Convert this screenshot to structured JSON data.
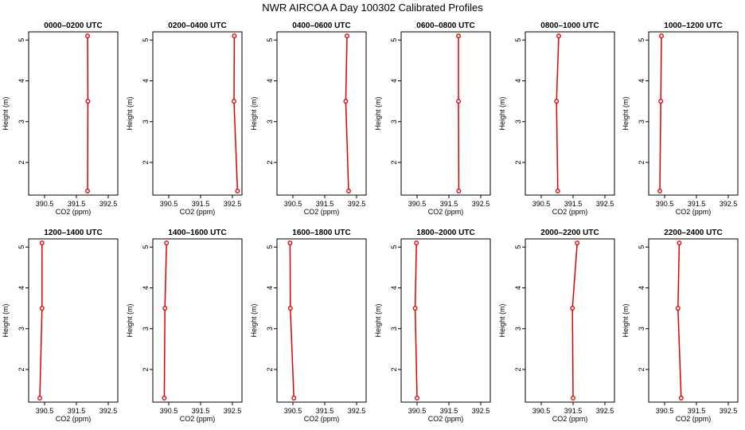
{
  "title": "NWR AIRCOA A  Day 100302  Calibrated Profiles",
  "colors": {
    "series": "#dd0000",
    "axis": "#000000"
  },
  "chart_data": [
    {
      "type": "line",
      "title": "0000–0200 UTC",
      "xlabel": "CO2 (ppm)",
      "ylabel": "Height (m)",
      "xlim": [
        390.0,
        392.8
      ],
      "ylim": [
        1.2,
        5.2
      ],
      "xticks": [
        "390.5",
        "391.5",
        "392.5"
      ],
      "yticks": [
        "2",
        "3",
        "4",
        "5"
      ],
      "grid": false,
      "x": [
        391.85,
        391.86,
        391.85
      ],
      "y": [
        5.1,
        3.5,
        1.3
      ]
    },
    {
      "type": "line",
      "title": "0200–0400 UTC",
      "xlabel": "CO2 (ppm)",
      "ylabel": "Height (m)",
      "xlim": [
        390.0,
        392.8
      ],
      "ylim": [
        1.2,
        5.2
      ],
      "xticks": [
        "390.5",
        "391.5",
        "392.5"
      ],
      "yticks": [
        "2",
        "3",
        "4",
        "5"
      ],
      "grid": false,
      "x": [
        392.56,
        392.55,
        392.66
      ],
      "y": [
        5.1,
        3.5,
        1.3
      ]
    },
    {
      "type": "line",
      "title": "0400–0600 UTC",
      "xlabel": "CO2 (ppm)",
      "ylabel": "Height (m)",
      "xlim": [
        390.0,
        392.8
      ],
      "ylim": [
        1.2,
        5.2
      ],
      "xticks": [
        "390.5",
        "391.5",
        "392.5"
      ],
      "yticks": [
        "2",
        "3",
        "4",
        "5"
      ],
      "grid": false,
      "x": [
        392.2,
        392.16,
        392.25
      ],
      "y": [
        5.1,
        3.5,
        1.3
      ]
    },
    {
      "type": "line",
      "title": "0600–0800 UTC",
      "xlabel": "CO2 (ppm)",
      "ylabel": "Height (m)",
      "xlim": [
        390.0,
        392.8
      ],
      "ylim": [
        1.2,
        5.2
      ],
      "xticks": [
        "390.5",
        "391.5",
        "392.5"
      ],
      "yticks": [
        "2",
        "3",
        "4",
        "5"
      ],
      "grid": false,
      "x": [
        391.8,
        391.8,
        391.81
      ],
      "y": [
        5.1,
        3.5,
        1.3
      ]
    },
    {
      "type": "line",
      "title": "0800–1000 UTC",
      "xlabel": "CO2 (ppm)",
      "ylabel": "Height (m)",
      "xlim": [
        390.0,
        392.8
      ],
      "ylim": [
        1.2,
        5.2
      ],
      "xticks": [
        "390.5",
        "391.5",
        "392.5"
      ],
      "yticks": [
        "2",
        "3",
        "4",
        "5"
      ],
      "grid": false,
      "x": [
        391.05,
        390.98,
        391.02
      ],
      "y": [
        5.1,
        3.5,
        1.3
      ]
    },
    {
      "type": "line",
      "title": "1000–1200 UTC",
      "xlabel": "CO2 (ppm)",
      "ylabel": "Height (m)",
      "xlim": [
        390.0,
        392.8
      ],
      "ylim": [
        1.2,
        5.2
      ],
      "xticks": [
        "390.5",
        "391.5",
        "392.5"
      ],
      "yticks": [
        "2",
        "3",
        "4",
        "5"
      ],
      "grid": false,
      "x": [
        390.4,
        390.38,
        390.35
      ],
      "y": [
        5.1,
        3.5,
        1.3
      ]
    },
    {
      "type": "line",
      "title": "1200–1400 UTC",
      "xlabel": "CO2 (ppm)",
      "ylabel": "Height (m)",
      "xlim": [
        390.0,
        392.8
      ],
      "ylim": [
        1.2,
        5.2
      ],
      "xticks": [
        "390.5",
        "391.5",
        "392.5"
      ],
      "yticks": [
        "2",
        "3",
        "4",
        "5"
      ],
      "grid": false,
      "x": [
        390.42,
        390.42,
        390.35
      ],
      "y": [
        5.1,
        3.5,
        1.3
      ]
    },
    {
      "type": "line",
      "title": "1400–1600 UTC",
      "xlabel": "CO2 (ppm)",
      "ylabel": "Height (m)",
      "xlim": [
        390.0,
        392.8
      ],
      "ylim": [
        1.2,
        5.2
      ],
      "xticks": [
        "390.5",
        "391.5",
        "392.5"
      ],
      "yticks": [
        "2",
        "3",
        "4",
        "5"
      ],
      "grid": false,
      "x": [
        390.43,
        390.38,
        390.36
      ],
      "y": [
        5.1,
        3.5,
        1.3
      ]
    },
    {
      "type": "line",
      "title": "1600–1800 UTC",
      "xlabel": "CO2 (ppm)",
      "ylabel": "Height (m)",
      "xlim": [
        390.0,
        392.8
      ],
      "ylim": [
        1.2,
        5.2
      ],
      "xticks": [
        "390.5",
        "391.5",
        "392.5"
      ],
      "yticks": [
        "2",
        "3",
        "4",
        "5"
      ],
      "grid": false,
      "x": [
        390.41,
        390.42,
        390.53
      ],
      "y": [
        5.1,
        3.5,
        1.3
      ]
    },
    {
      "type": "line",
      "title": "1800–2000 UTC",
      "xlabel": "CO2 (ppm)",
      "ylabel": "Height (m)",
      "xlim": [
        390.0,
        392.8
      ],
      "ylim": [
        1.2,
        5.2
      ],
      "xticks": [
        "390.5",
        "391.5",
        "392.5"
      ],
      "yticks": [
        "2",
        "3",
        "4",
        "5"
      ],
      "grid": false,
      "x": [
        390.48,
        390.44,
        390.5
      ],
      "y": [
        5.1,
        3.5,
        1.3
      ]
    },
    {
      "type": "line",
      "title": "2000–2200 UTC",
      "xlabel": "CO2 (ppm)",
      "ylabel": "Height (m)",
      "xlim": [
        390.0,
        392.8
      ],
      "ylim": [
        1.2,
        5.2
      ],
      "xticks": [
        "390.5",
        "391.5",
        "392.5"
      ],
      "yticks": [
        "2",
        "3",
        "4",
        "5"
      ],
      "grid": false,
      "x": [
        391.63,
        391.48,
        391.5
      ],
      "y": [
        5.1,
        3.5,
        1.3
      ]
    },
    {
      "type": "line",
      "title": "2200–2400 UTC",
      "xlabel": "CO2 (ppm)",
      "ylabel": "Height (m)",
      "xlim": [
        390.0,
        392.8
      ],
      "ylim": [
        1.2,
        5.2
      ],
      "xticks": [
        "390.5",
        "391.5",
        "392.5"
      ],
      "yticks": [
        "2",
        "3",
        "4",
        "5"
      ],
      "grid": false,
      "x": [
        390.96,
        390.92,
        391.02
      ],
      "y": [
        5.1,
        3.5,
        1.3
      ]
    }
  ]
}
